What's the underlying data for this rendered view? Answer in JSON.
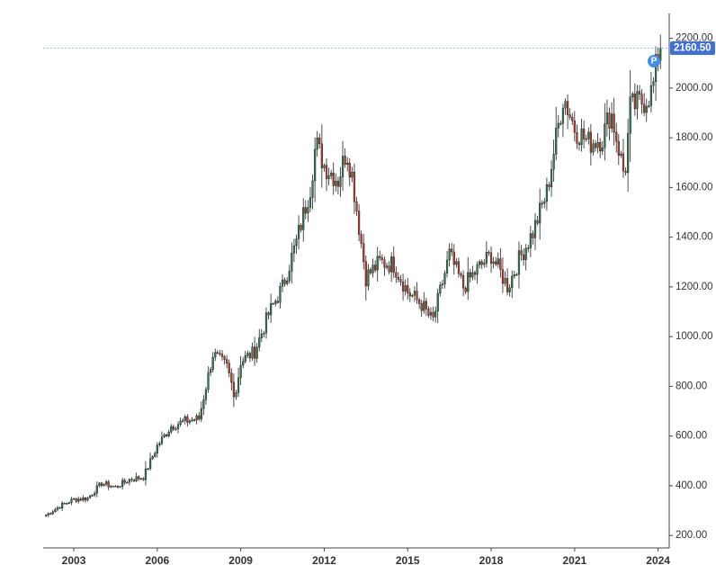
{
  "chart_data": {
    "type": "candlestick",
    "title": "",
    "xlabel": "",
    "ylabel": "",
    "ylim": [
      150,
      2300
    ],
    "xlim": [
      2001.9,
      2024.4
    ],
    "y_ticks": [
      {
        "value": 200,
        "label": "200.00"
      },
      {
        "value": 400,
        "label": "400.00"
      },
      {
        "value": 600,
        "label": "600.00"
      },
      {
        "value": 800,
        "label": "800.00"
      },
      {
        "value": 1000,
        "label": "1000.00"
      },
      {
        "value": 1200,
        "label": "1200.00"
      },
      {
        "value": 1400,
        "label": "1400.00"
      },
      {
        "value": 1600,
        "label": "1600.00"
      },
      {
        "value": 1800,
        "label": "1800.00"
      },
      {
        "value": 2000,
        "label": "2000.00"
      },
      {
        "value": 2200,
        "label": "2200.00"
      }
    ],
    "x_ticks": [
      {
        "value": 2003,
        "label": "2003"
      },
      {
        "value": 2006,
        "label": "2006"
      },
      {
        "value": 2009,
        "label": "2009"
      },
      {
        "value": 2012,
        "label": "2012"
      },
      {
        "value": 2015,
        "label": "2015"
      },
      {
        "value": 2018,
        "label": "2018"
      },
      {
        "value": 2021,
        "label": "2021"
      },
      {
        "value": 2024,
        "label": "2024"
      }
    ],
    "frequency": "monthly",
    "up_color": "#2e7d4f",
    "down_color": "#c0392b",
    "wick_color": "#222222",
    "last_price": 2160.5,
    "last_price_label": "2160.50",
    "price_line_color": "#9ec3e6",
    "badge_color": "#3f6fd8",
    "marker": {
      "label": "P",
      "color": "#3f8ee8",
      "x": 2023.85,
      "y": 2108
    },
    "grid": false,
    "legend": "none",
    "anchors": [
      [
        2002.0,
        282
      ],
      [
        2002.5,
        318
      ],
      [
        2003.0,
        345
      ],
      [
        2003.5,
        350
      ],
      [
        2004.0,
        410
      ],
      [
        2004.5,
        395
      ],
      [
        2005.0,
        425
      ],
      [
        2005.5,
        435
      ],
      [
        2006.0,
        560
      ],
      [
        2006.5,
        640
      ],
      [
        2007.0,
        660
      ],
      [
        2007.5,
        670
      ],
      [
        2008.0,
        930
      ],
      [
        2008.5,
        880
      ],
      [
        2008.8,
        760
      ],
      [
        2009.0,
        900
      ],
      [
        2009.5,
        940
      ],
      [
        2010.0,
        1090
      ],
      [
        2010.5,
        1200
      ],
      [
        2011.0,
        1380
      ],
      [
        2011.5,
        1600
      ],
      [
        2011.7,
        1780
      ],
      [
        2012.0,
        1690
      ],
      [
        2012.5,
        1630
      ],
      [
        2012.8,
        1750
      ],
      [
        2013.0,
        1650
      ],
      [
        2013.5,
        1240
      ],
      [
        2014.0,
        1300
      ],
      [
        2014.5,
        1290
      ],
      [
        2015.0,
        1180
      ],
      [
        2015.5,
        1130
      ],
      [
        2015.9,
        1060
      ],
      [
        2016.5,
        1330
      ],
      [
        2017.0,
        1200
      ],
      [
        2017.5,
        1270
      ],
      [
        2018.0,
        1330
      ],
      [
        2018.6,
        1200
      ],
      [
        2019.0,
        1310
      ],
      [
        2019.5,
        1420
      ],
      [
        2020.0,
        1580
      ],
      [
        2020.6,
        1970
      ],
      [
        2021.0,
        1840
      ],
      [
        2021.5,
        1780
      ],
      [
        2022.0,
        1800
      ],
      [
        2022.3,
        1910
      ],
      [
        2022.8,
        1640
      ],
      [
        2023.0,
        1920
      ],
      [
        2023.5,
        1950
      ],
      [
        2023.8,
        1990
      ],
      [
        2024.0,
        2140
      ],
      [
        2024.15,
        2160
      ]
    ]
  }
}
